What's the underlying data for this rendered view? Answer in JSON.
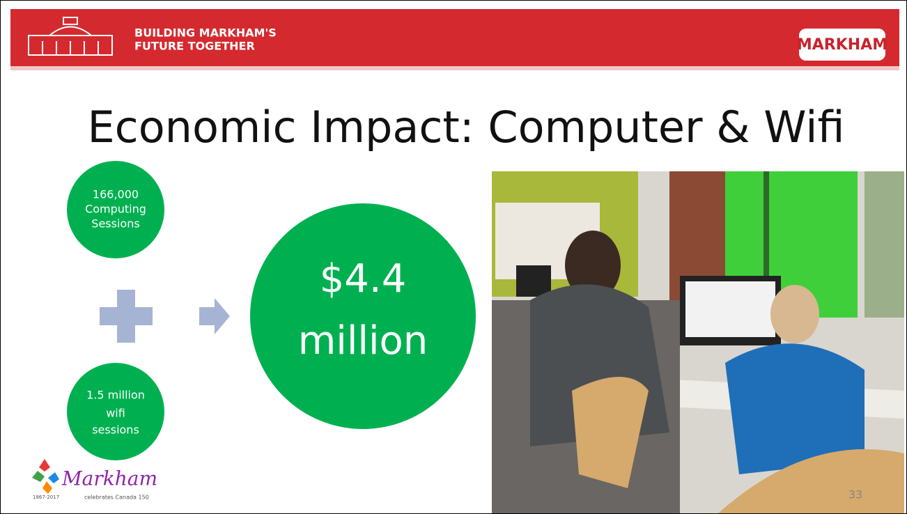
{
  "header": {
    "banner_lines": [
      "BUILDING MARKHAM'S",
      "FUTURE TOGETHER"
    ],
    "right_logo": "MARKHAM"
  },
  "title": "Economic Impact: Computer & Wifi",
  "circles": [
    {
      "lines": [
        "166,000",
        "Computing",
        "Sessions"
      ]
    },
    {
      "lines": [
        "1.5 million",
        "wifi",
        "sessions"
      ]
    }
  ],
  "result": {
    "lines": [
      "$4.4",
      "million"
    ]
  },
  "footer_logo": {
    "name": "Markham",
    "tagline": "celebrates Canada 150",
    "years": "1867-2017"
  },
  "page_number": "33"
}
